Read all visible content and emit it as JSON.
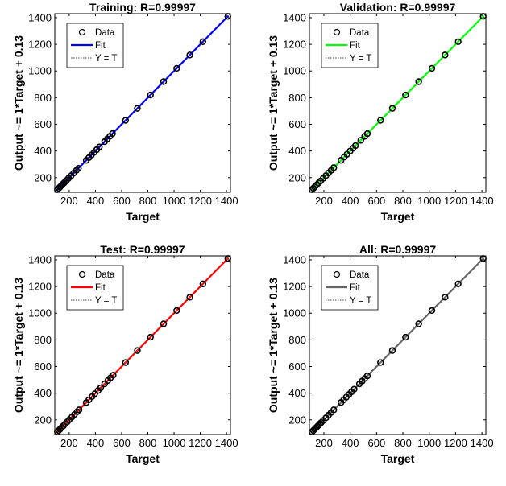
{
  "chart_data": [
    {
      "type": "scatter",
      "title": "Training: R=0.99997",
      "xlabel": "Target",
      "ylabel": "Output ~= 1*Target + 0.13",
      "xlim": [
        90,
        1430
      ],
      "ylim": [
        90,
        1430
      ],
      "xticks": [
        200,
        400,
        600,
        800,
        1000,
        1200,
        1400
      ],
      "yticks": [
        200,
        400,
        600,
        800,
        1000,
        1200,
        1400
      ],
      "fit": {
        "slope": 1,
        "intercept": 0.13
      },
      "fit_color": "#0000ff",
      "legend": [
        "Data",
        "Fit",
        "Y = T"
      ],
      "legend_position": "top-left",
      "points": [
        [
          110,
          110
        ],
        [
          120,
          120
        ],
        [
          130,
          130
        ],
        [
          140,
          140
        ],
        [
          150,
          150
        ],
        [
          160,
          160
        ],
        [
          170,
          170
        ],
        [
          180,
          180
        ],
        [
          195,
          195
        ],
        [
          215,
          215
        ],
        [
          235,
          235
        ],
        [
          255,
          255
        ],
        [
          270,
          270
        ],
        [
          330,
          330
        ],
        [
          350,
          350
        ],
        [
          370,
          370
        ],
        [
          390,
          390
        ],
        [
          410,
          410
        ],
        [
          430,
          430
        ],
        [
          470,
          470
        ],
        [
          490,
          490
        ],
        [
          510,
          510
        ],
        [
          530,
          530
        ],
        [
          630,
          630
        ],
        [
          720,
          720
        ],
        [
          820,
          820
        ],
        [
          920,
          920
        ],
        [
          1020,
          1020
        ],
        [
          1120,
          1120
        ],
        [
          1220,
          1220
        ],
        [
          1410,
          1410
        ]
      ]
    },
    {
      "type": "scatter",
      "title": "Validation: R=0.99997",
      "xlabel": "Target",
      "ylabel": "Output ~= 1*Target + 0.13",
      "xlim": [
        90,
        1430
      ],
      "ylim": [
        90,
        1430
      ],
      "xticks": [
        200,
        400,
        600,
        800,
        1000,
        1200,
        1400
      ],
      "yticks": [
        200,
        400,
        600,
        800,
        1000,
        1200,
        1400
      ],
      "fit": {
        "slope": 1,
        "intercept": 0.13
      },
      "fit_color": "#00ff00",
      "legend": [
        "Data",
        "Fit",
        "Y = T"
      ],
      "legend_position": "top-left",
      "points": [
        [
          110,
          110
        ],
        [
          120,
          120
        ],
        [
          130,
          130
        ],
        [
          145,
          145
        ],
        [
          160,
          160
        ],
        [
          175,
          175
        ],
        [
          195,
          195
        ],
        [
          215,
          215
        ],
        [
          235,
          235
        ],
        [
          255,
          255
        ],
        [
          275,
          275
        ],
        [
          330,
          330
        ],
        [
          355,
          355
        ],
        [
          375,
          375
        ],
        [
          400,
          400
        ],
        [
          420,
          420
        ],
        [
          440,
          440
        ],
        [
          480,
          480
        ],
        [
          510,
          510
        ],
        [
          530,
          530
        ],
        [
          630,
          630
        ],
        [
          720,
          720
        ],
        [
          820,
          820
        ],
        [
          920,
          920
        ],
        [
          1020,
          1020
        ],
        [
          1120,
          1120
        ],
        [
          1220,
          1220
        ],
        [
          1410,
          1410
        ]
      ]
    },
    {
      "type": "scatter",
      "title": "Test: R=0.99997",
      "xlabel": "Target",
      "ylabel": "Output ~= 1*Target + 0.13",
      "xlim": [
        90,
        1430
      ],
      "ylim": [
        90,
        1430
      ],
      "xticks": [
        200,
        400,
        600,
        800,
        1000,
        1200,
        1400
      ],
      "yticks": [
        200,
        400,
        600,
        800,
        1000,
        1200,
        1400
      ],
      "fit": {
        "slope": 1,
        "intercept": 0.13
      },
      "fit_color": "#ff0000",
      "legend": [
        "Data",
        "Fit",
        "Y = T"
      ],
      "legend_position": "top-left",
      "points": [
        [
          110,
          110
        ],
        [
          120,
          120
        ],
        [
          130,
          130
        ],
        [
          140,
          140
        ],
        [
          155,
          155
        ],
        [
          170,
          170
        ],
        [
          185,
          185
        ],
        [
          200,
          200
        ],
        [
          220,
          220
        ],
        [
          240,
          240
        ],
        [
          260,
          260
        ],
        [
          275,
          275
        ],
        [
          330,
          330
        ],
        [
          350,
          350
        ],
        [
          375,
          375
        ],
        [
          395,
          395
        ],
        [
          420,
          420
        ],
        [
          440,
          440
        ],
        [
          470,
          470
        ],
        [
          495,
          495
        ],
        [
          515,
          515
        ],
        [
          535,
          535
        ],
        [
          630,
          630
        ],
        [
          720,
          720
        ],
        [
          820,
          820
        ],
        [
          920,
          920
        ],
        [
          1020,
          1020
        ],
        [
          1120,
          1120
        ],
        [
          1220,
          1220
        ],
        [
          1410,
          1410
        ]
      ]
    },
    {
      "type": "scatter",
      "title": "All: R=0.99997",
      "xlabel": "Target",
      "ylabel": "Output ~= 1*Target + 0.13",
      "xlim": [
        90,
        1430
      ],
      "ylim": [
        90,
        1430
      ],
      "xticks": [
        200,
        400,
        600,
        800,
        1000,
        1200,
        1400
      ],
      "yticks": [
        200,
        400,
        600,
        800,
        1000,
        1200,
        1400
      ],
      "fit": {
        "slope": 1,
        "intercept": 0.13
      },
      "fit_color": "#666666",
      "legend": [
        "Data",
        "Fit",
        "Y = T"
      ],
      "legend_position": "top-left",
      "points": [
        [
          110,
          110
        ],
        [
          120,
          120
        ],
        [
          130,
          130
        ],
        [
          140,
          140
        ],
        [
          150,
          150
        ],
        [
          160,
          160
        ],
        [
          170,
          170
        ],
        [
          180,
          180
        ],
        [
          195,
          195
        ],
        [
          215,
          215
        ],
        [
          235,
          235
        ],
        [
          255,
          255
        ],
        [
          275,
          275
        ],
        [
          330,
          330
        ],
        [
          350,
          350
        ],
        [
          370,
          370
        ],
        [
          390,
          390
        ],
        [
          410,
          410
        ],
        [
          430,
          430
        ],
        [
          470,
          470
        ],
        [
          490,
          490
        ],
        [
          510,
          510
        ],
        [
          530,
          530
        ],
        [
          630,
          630
        ],
        [
          720,
          720
        ],
        [
          820,
          820
        ],
        [
          920,
          920
        ],
        [
          1020,
          1020
        ],
        [
          1120,
          1120
        ],
        [
          1220,
          1220
        ],
        [
          1410,
          1410
        ]
      ]
    }
  ]
}
